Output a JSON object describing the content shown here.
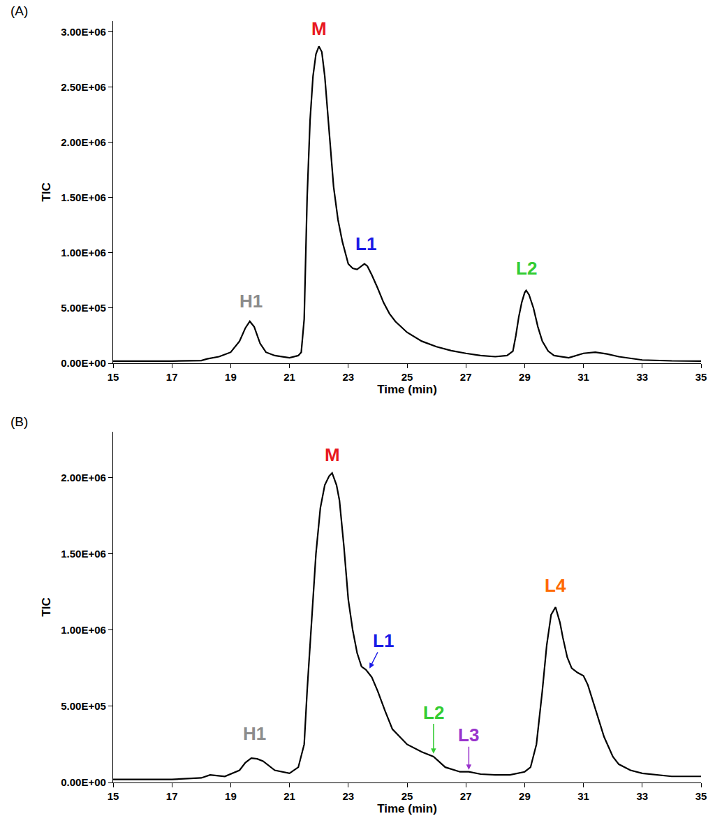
{
  "chart_data": [
    {
      "type": "line",
      "title": "(A)",
      "x_label": "Time (min)",
      "y_label": "TIC",
      "color": "#000000",
      "grid": false,
      "xlim": [
        15,
        35
      ],
      "xticks": [
        15,
        17,
        19,
        21,
        23,
        25,
        27,
        29,
        31,
        33,
        35
      ],
      "ylim": [
        0,
        3100000
      ],
      "yticks": [
        {
          "value": 0,
          "label": "0.00E+00"
        },
        {
          "value": 500000,
          "label": "5.00E+05"
        },
        {
          "value": 1000000,
          "label": "1.00E+06"
        },
        {
          "value": 1500000,
          "label": "1.50E+06"
        },
        {
          "value": 2000000,
          "label": "2.00E+06"
        },
        {
          "value": 2500000,
          "label": "2.50E+06"
        },
        {
          "value": 3000000,
          "label": "3.00E+06"
        }
      ],
      "x": [
        15,
        16,
        17,
        18,
        18.2,
        18.6,
        19,
        19.3,
        19.5,
        19.65,
        19.8,
        20,
        20.2,
        20.5,
        21,
        21.3,
        21.4,
        21.5,
        21.6,
        21.7,
        21.8,
        21.9,
        22,
        22.1,
        22.2,
        22.35,
        22.5,
        22.65,
        22.8,
        23,
        23.15,
        23.3,
        23.45,
        23.55,
        23.65,
        23.8,
        24,
        24.2,
        24.4,
        24.6,
        25,
        25.5,
        26,
        26.5,
        27,
        27.5,
        28,
        28.4,
        28.6,
        28.7,
        28.8,
        28.9,
        29,
        29.05,
        29.15,
        29.3,
        29.45,
        29.6,
        29.8,
        30,
        30.5,
        31,
        31.4,
        31.8,
        32.2,
        33,
        34,
        35
      ],
      "values": [
        20000,
        20000,
        20000,
        25000,
        40000,
        60000,
        100000,
        200000,
        320000,
        380000,
        330000,
        180000,
        100000,
        70000,
        50000,
        70000,
        100000,
        400000,
        1500000,
        2200000,
        2600000,
        2800000,
        2870000,
        2820000,
        2600000,
        2100000,
        1600000,
        1300000,
        1100000,
        900000,
        860000,
        850000,
        880000,
        900000,
        880000,
        800000,
        680000,
        550000,
        450000,
        380000,
        280000,
        200000,
        150000,
        115000,
        90000,
        70000,
        60000,
        70000,
        110000,
        250000,
        420000,
        550000,
        640000,
        660000,
        620000,
        500000,
        330000,
        200000,
        110000,
        70000,
        50000,
        90000,
        100000,
        85000,
        60000,
        30000,
        22000,
        20000
      ],
      "annotations": [
        {
          "text": "M",
          "x": 22,
          "y": 3030000,
          "color": "#e8191f"
        },
        {
          "text": "H1",
          "x": 19.7,
          "y": 560000,
          "color": "#8c8c8c"
        },
        {
          "text": "L1",
          "x": 23.6,
          "y": 1080000,
          "color": "#1a1ae6"
        },
        {
          "text": "L2",
          "x": 29.05,
          "y": 860000,
          "color": "#33cc33"
        }
      ]
    },
    {
      "type": "line",
      "title": "(B)",
      "x_label": "Time (min)",
      "y_label": "TIC",
      "color": "#000000",
      "grid": false,
      "xlim": [
        15,
        35
      ],
      "xticks": [
        15,
        17,
        19,
        21,
        23,
        25,
        27,
        29,
        31,
        33,
        35
      ],
      "ylim": [
        0,
        2300000
      ],
      "yticks": [
        {
          "value": 0,
          "label": "0.00E+00"
        },
        {
          "value": 500000,
          "label": "5.00E+05"
        },
        {
          "value": 1000000,
          "label": "1.00E+06"
        },
        {
          "value": 1500000,
          "label": "1.50E+06"
        },
        {
          "value": 2000000,
          "label": "2.00E+06"
        }
      ],
      "x": [
        15,
        16,
        17,
        18,
        18.3,
        18.8,
        19.3,
        19.5,
        19.7,
        19.9,
        20.1,
        20.5,
        21,
        21.3,
        21.5,
        21.6,
        21.75,
        21.9,
        22.05,
        22.2,
        22.35,
        22.45,
        22.6,
        22.7,
        22.85,
        23,
        23.15,
        23.3,
        23.45,
        23.6,
        23.8,
        24,
        24.25,
        24.5,
        25,
        25.5,
        25.9,
        26.3,
        26.8,
        27.1,
        27.5,
        28,
        28.5,
        29,
        29.2,
        29.4,
        29.6,
        29.75,
        29.9,
        30.05,
        30.2,
        30.3,
        30.45,
        30.6,
        30.8,
        31,
        31.15,
        31.3,
        31.5,
        31.7,
        32,
        32.2,
        32.6,
        33,
        34,
        35
      ],
      "values": [
        20000,
        20000,
        20000,
        30000,
        50000,
        40000,
        80000,
        130000,
        160000,
        155000,
        140000,
        80000,
        60000,
        100000,
        250000,
        600000,
        1050000,
        1500000,
        1800000,
        1950000,
        2010000,
        2030000,
        1950000,
        1850000,
        1550000,
        1200000,
        1000000,
        850000,
        760000,
        740000,
        690000,
        600000,
        470000,
        350000,
        250000,
        200000,
        170000,
        100000,
        70000,
        70000,
        55000,
        50000,
        50000,
        70000,
        100000,
        250000,
        600000,
        900000,
        1100000,
        1150000,
        1050000,
        950000,
        820000,
        750000,
        720000,
        700000,
        640000,
        550000,
        420000,
        300000,
        170000,
        120000,
        80000,
        60000,
        40000,
        40000
      ],
      "annotations": [
        {
          "text": "M",
          "x": 22.45,
          "y": 2150000,
          "color": "#e8191f"
        },
        {
          "text": "H1",
          "x": 19.8,
          "y": 320000,
          "color": "#8c8c8c"
        },
        {
          "text": "L1",
          "x": 24.2,
          "y": 930000,
          "color": "#1a1ae6",
          "arrow_x": 23.7,
          "arrow_y": 740000
        },
        {
          "text": "L2",
          "x": 25.9,
          "y": 460000,
          "color": "#33cc33",
          "arrow_x": 25.9,
          "arrow_y": 180000
        },
        {
          "text": "L3",
          "x": 27.1,
          "y": 310000,
          "color": "#9933cc",
          "arrow_x": 27.1,
          "arrow_y": 75000
        },
        {
          "text": "L4",
          "x": 30.05,
          "y": 1290000,
          "color": "#ff6a00"
        }
      ]
    }
  ]
}
